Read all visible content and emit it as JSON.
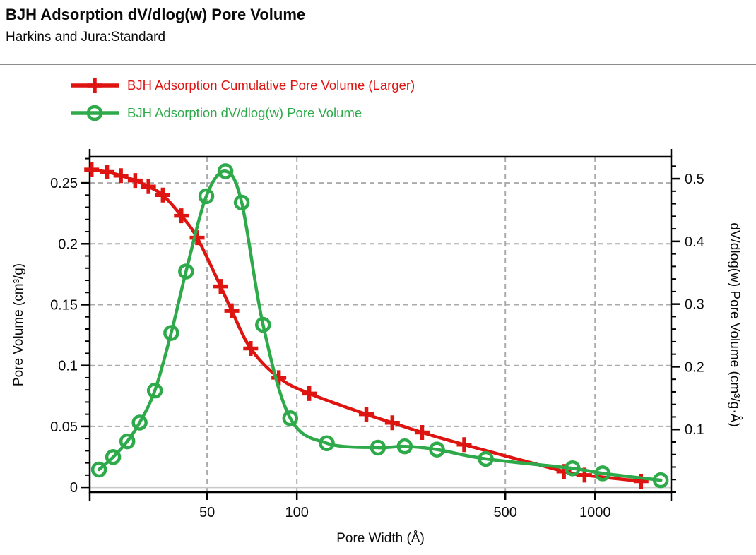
{
  "page": {
    "title": "BJH Adsorption dV/dlog(w) Pore Volume",
    "subtitle": "Harkins and Jura:Standard"
  },
  "legend": [
    {
      "label": "BJH Adsorption Cumulative Pore Volume (Larger)",
      "color": "#de1411",
      "marker": "plus"
    },
    {
      "label": "BJH Adsorption dV/dlog(w) Pore Volume",
      "color": "#2eaa4a",
      "marker": "circle"
    }
  ],
  "chart_data": {
    "type": "line",
    "title": "BJH Adsorption dV/dlog(w) Pore Volume",
    "x_scale": "log",
    "xlabel": "Pore Width (Å)",
    "x_ticks": [
      50,
      100,
      500,
      1000
    ],
    "x_range": [
      20.2,
      1800
    ],
    "grid": true,
    "grid_color": "#ababab",
    "zero_line_color": "#c9c9c9",
    "axes": {
      "left": {
        "label": "Pore Volume (cm³/g)",
        "ticks": [
          0,
          0.05,
          0.1,
          0.15,
          0.2,
          0.25
        ],
        "minor_step": 0.01,
        "range": [
          -0.004,
          0.2715
        ]
      },
      "right": {
        "label": "dV/dlog(w) Pore Volume (cm³/g·Å)",
        "ticks": [
          0.1,
          0.2,
          0.3,
          0.4,
          0.5
        ],
        "minor_step": 0.02,
        "range": [
          0,
          0.535
        ]
      }
    },
    "series": [
      {
        "name": "BJH Adsorption Cumulative Pore Volume (Larger)",
        "axis": "left",
        "color": "#de1411",
        "marker": "plus",
        "points": [
          [
            20.5,
            0.261
          ],
          [
            23.1,
            0.259
          ],
          [
            25.7,
            0.256
          ],
          [
            28.7,
            0.252
          ],
          [
            31.8,
            0.247
          ],
          [
            35.5,
            0.24
          ],
          [
            41.0,
            0.223
          ],
          [
            46.3,
            0.205
          ],
          [
            55.5,
            0.165
          ],
          [
            60.5,
            0.145
          ],
          [
            70.0,
            0.114
          ],
          [
            87.0,
            0.09
          ],
          [
            110,
            0.077
          ],
          [
            171,
            0.06
          ],
          [
            209,
            0.053
          ],
          [
            263,
            0.045
          ],
          [
            364,
            0.035
          ],
          [
            786,
            0.013
          ],
          [
            922,
            0.01
          ],
          [
            1426,
            0.005
          ]
        ]
      },
      {
        "name": "BJH Adsorption dV/dlog(w) Pore Volume",
        "axis": "right",
        "color": "#2eaa4a",
        "marker": "circle",
        "points": [
          [
            21.7,
            0.036
          ],
          [
            24.2,
            0.056
          ],
          [
            27.0,
            0.081
          ],
          [
            29.7,
            0.111
          ],
          [
            33.4,
            0.162
          ],
          [
            37.9,
            0.254
          ],
          [
            42.5,
            0.352
          ],
          [
            49.7,
            0.472
          ],
          [
            57.6,
            0.512
          ],
          [
            65.3,
            0.462
          ],
          [
            77.0,
            0.267
          ],
          [
            95.0,
            0.118
          ],
          [
            126,
            0.078
          ],
          [
            187,
            0.071
          ],
          [
            230,
            0.073
          ],
          [
            295,
            0.068
          ],
          [
            430,
            0.053
          ],
          [
            840,
            0.038
          ],
          [
            1060,
            0.03
          ],
          [
            1660,
            0.019
          ]
        ]
      }
    ]
  }
}
